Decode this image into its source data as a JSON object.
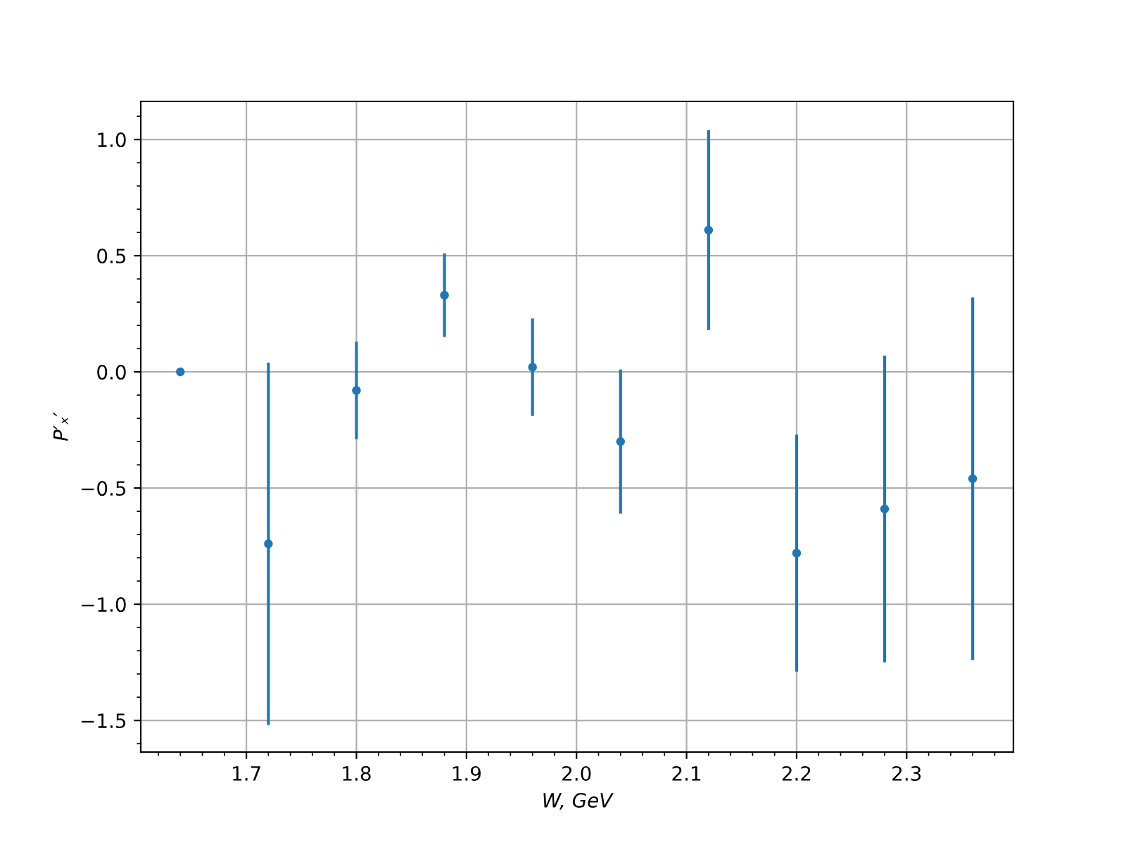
{
  "chart_data": {
    "type": "scatter",
    "xlabel": "W, GeV",
    "ylabel": "P′ₓ′",
    "x": [
      1.64,
      1.72,
      1.8,
      1.88,
      1.96,
      2.04,
      2.12,
      2.2,
      2.28,
      2.36
    ],
    "series": [
      {
        "color": "#1f77b4",
        "values": [
          0.0,
          -0.74,
          -0.08,
          0.33,
          0.02,
          -0.3,
          0.61,
          -0.78,
          -0.59,
          -0.46
        ],
        "errors": [
          null,
          0.78,
          0.21,
          0.18,
          0.21,
          0.31,
          0.43,
          0.51,
          0.66,
          0.78
        ]
      }
    ],
    "xlim": [
      1.604,
      2.397
    ],
    "ylim": [
      -1.636,
      1.164
    ],
    "xticks": [
      1.7,
      1.8,
      1.9,
      {
        "value": 2.0,
        "label": "2.0"
      },
      2.1,
      2.2,
      2.3
    ],
    "yticks": [
      {
        "value": -1.5,
        "label": "−1.5"
      },
      {
        "value": -1.0,
        "label": "−1.0"
      },
      {
        "value": -0.5,
        "label": "−0.5"
      },
      {
        "value": 0.0,
        "label": "0.0"
      },
      0.5,
      {
        "value": 1.0,
        "label": "1.0"
      }
    ],
    "grid": true,
    "marker": "circle"
  }
}
